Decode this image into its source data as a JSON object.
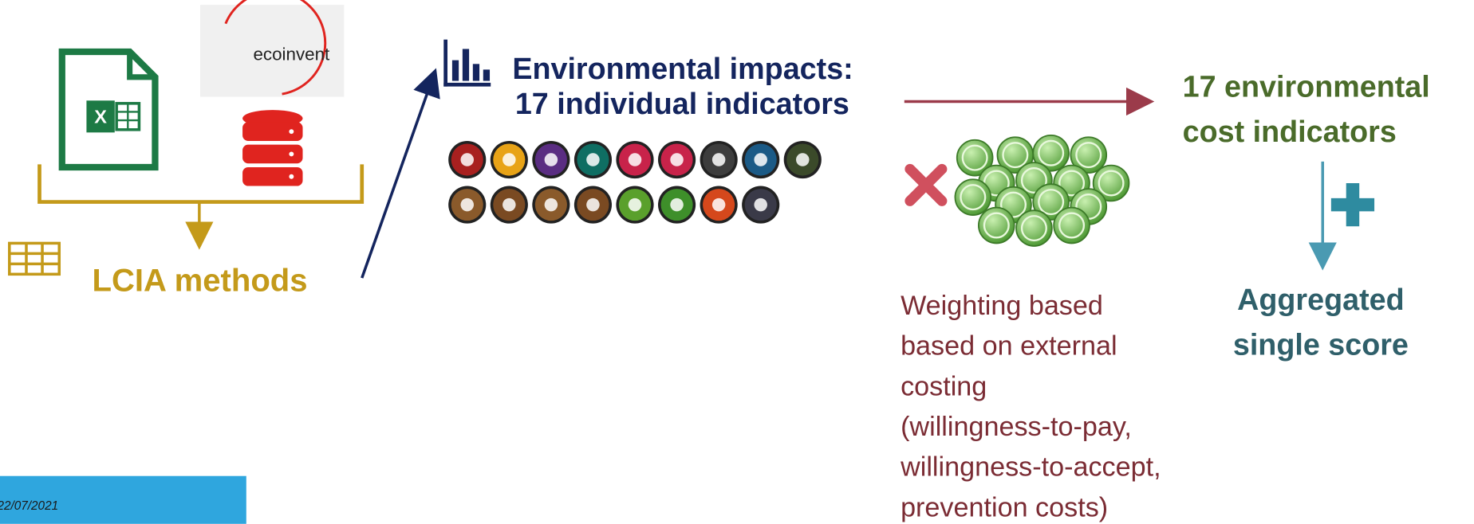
{
  "logo": "ecoinvent",
  "lcia": {
    "label": "LCIA methods"
  },
  "impacts": {
    "lines": [
      "Environmental impacts:",
      "17 individual indicators"
    ]
  },
  "cost": {
    "lines": [
      "17 environmental",
      "cost indicators"
    ]
  },
  "weighting": {
    "lines": [
      "Weighting based",
      "based on external",
      "costing",
      "(willingness-to-pay,",
      "willingness-to-accept,",
      "prevention costs)"
    ]
  },
  "aggregate": {
    "lines": [
      "Aggregated",
      "single score"
    ]
  },
  "footer": {
    "date": "22/07/2021"
  }
}
